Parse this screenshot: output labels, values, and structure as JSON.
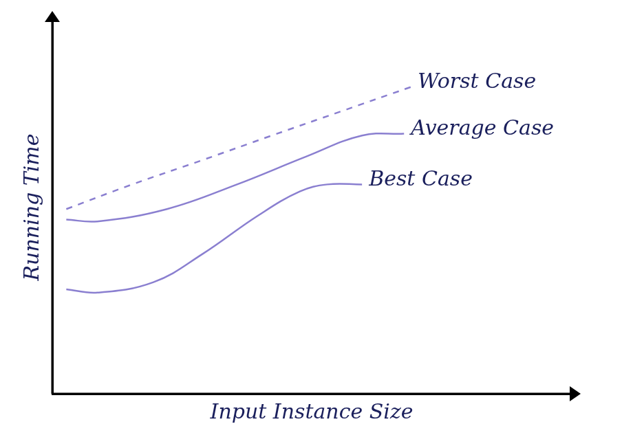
{
  "chart_data": {
    "type": "line",
    "x_label": "Input Instance Size",
    "y_label": "Running Time",
    "xlim": [
      0,
      10
    ],
    "ylim": [
      0,
      10
    ],
    "tick_labels": false,
    "grid": false,
    "series": [
      {
        "name": "Worst Case",
        "color": "#8a7fd0",
        "line_style": "dashed",
        "x": [
          0.27,
          1.54,
          2.89,
          4.23,
          5.57,
          6.91
        ],
        "values": [
          4.95,
          5.61,
          6.26,
          6.92,
          7.57,
          8.22
        ]
      },
      {
        "name": "Average Case",
        "color": "#8a7fd0",
        "line_style": "solid",
        "x": [
          0.27,
          0.87,
          2.21,
          3.56,
          4.9,
          5.97,
          6.78
        ],
        "values": [
          4.67,
          4.62,
          4.95,
          5.61,
          6.36,
          6.92,
          6.97
        ]
      },
      {
        "name": "Best Case",
        "color": "#8a7fd0",
        "line_style": "solid",
        "x": [
          0.27,
          0.87,
          1.95,
          2.89,
          3.96,
          4.77,
          5.3,
          5.97
        ],
        "values": [
          2.8,
          2.71,
          2.99,
          3.74,
          4.77,
          5.42,
          5.61,
          5.61
        ]
      }
    ]
  }
}
